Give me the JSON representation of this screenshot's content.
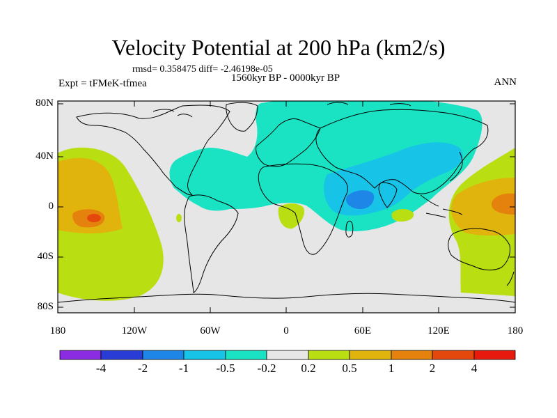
{
  "title": "Velocity Potential at 200 hPa (km2/s)",
  "stats": "rmsd= 0.358475 diff= -2.46198e-05",
  "left_label": "Expt = tFMeK-tfmea",
  "center_label": "1560kyr BP - 0000kyr BP",
  "right_label": "ANN",
  "lat_labels": [
    "80N",
    "40N",
    "0",
    "40S",
    "80S"
  ],
  "lon_labels": [
    "180",
    "120W",
    "60W",
    "0",
    "60E",
    "120E",
    "180"
  ],
  "colorbar": {
    "colors": [
      "#8b2be2",
      "#2a3cd6",
      "#1d86e6",
      "#17c3e6",
      "#19e3c3",
      "#e6e6e6",
      "#b9de12",
      "#e0b40c",
      "#e4820d",
      "#e4480d",
      "#e61a0d"
    ],
    "labels": [
      "-4",
      "-2",
      "-1",
      "-0.5",
      "-0.2",
      "0.2",
      "0.5",
      "1",
      "2",
      "4"
    ]
  }
}
